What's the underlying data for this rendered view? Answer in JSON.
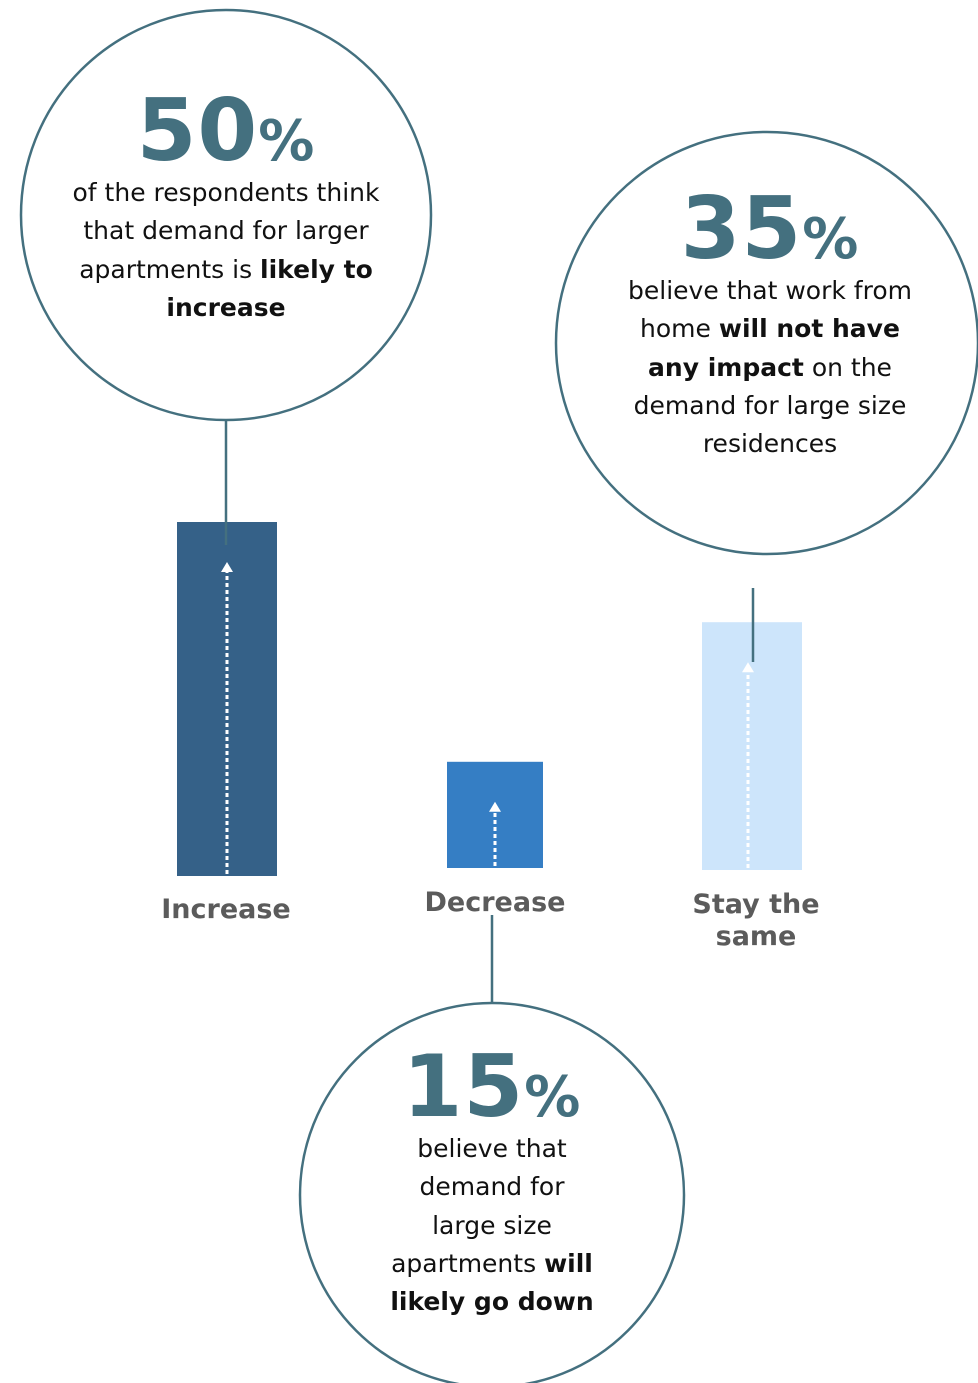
{
  "colors": {
    "teal": "#44707f",
    "increase_bar": "#356188",
    "decrease_bar": "#357ec4",
    "stay_bar": "#cde5fb",
    "label_gray": "#5b5b5b"
  },
  "chart_data": {
    "type": "bar",
    "categories": [
      "Increase",
      "Decrease",
      "Stay the same"
    ],
    "values": [
      50,
      15,
      35
    ],
    "unit": "%",
    "ylim": [
      0,
      50
    ],
    "grid": false,
    "legend": "none"
  },
  "callouts": [
    {
      "category": "Increase",
      "number": "50",
      "percent": "%",
      "text_1": "of the respondents think that demand for larger apartments is ",
      "text_bold": "likely to increase",
      "text_2": ""
    },
    {
      "category": "Stay the same",
      "number": "35",
      "percent": "%",
      "text_1": "believe that work from home ",
      "text_bold": "will not have any impact",
      "text_2": " on the demand for large size residences"
    },
    {
      "category": "Decrease",
      "number": "15",
      "percent": "%",
      "text_1": "believe that demand for large size apartments ",
      "text_bold": "will likely go down",
      "text_2": ""
    }
  ]
}
